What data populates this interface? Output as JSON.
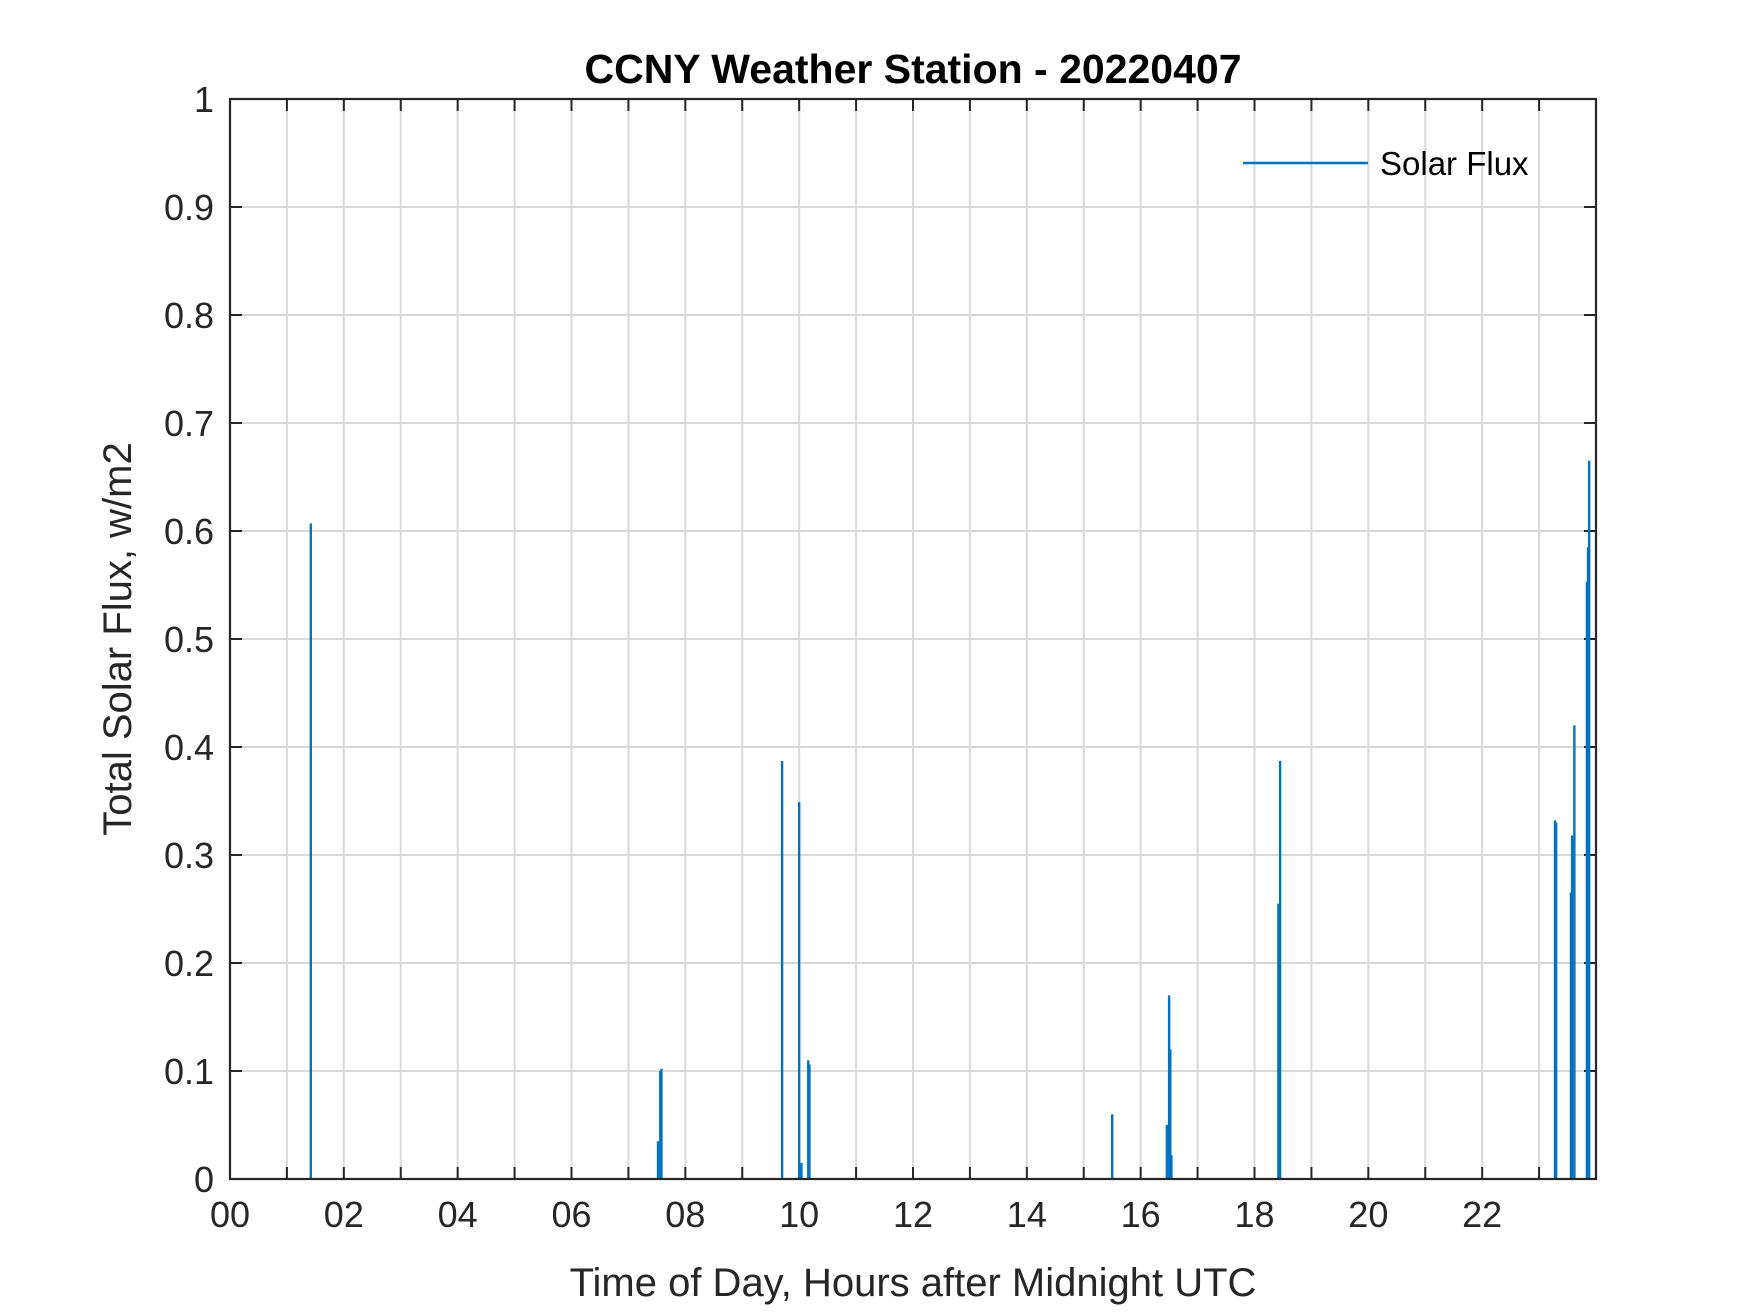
{
  "chart_data": {
    "type": "line",
    "title": "CCNY Weather Station - 20220407",
    "xlabel": "Time of Day, Hours after Midnight UTC",
    "ylabel": "Total Solar Flux, w/m2",
    "xlim": [
      0,
      24
    ],
    "ylim": [
      0,
      1
    ],
    "x_ticks": [
      0,
      2,
      4,
      6,
      8,
      10,
      12,
      14,
      16,
      18,
      20,
      22
    ],
    "x_tick_labels": [
      "00",
      "02",
      "04",
      "06",
      "08",
      "10",
      "12",
      "14",
      "16",
      "18",
      "20",
      "22"
    ],
    "y_ticks": [
      0,
      0.1,
      0.2,
      0.3,
      0.4,
      0.5,
      0.6,
      0.7,
      0.8,
      0.9,
      1
    ],
    "y_tick_labels": [
      "0",
      "0.1",
      "0.2",
      "0.3",
      "0.4",
      "0.5",
      "0.6",
      "0.7",
      "0.8",
      "0.9",
      "1"
    ],
    "grid": true,
    "minor_x_grid_step": 1,
    "legend_position": "top-right",
    "series": [
      {
        "name": "Solar Flux",
        "color": "#0072BD",
        "spikes": [
          {
            "x": 1.42,
            "y": 0.607
          },
          {
            "x": 7.52,
            "y": 0.035
          },
          {
            "x": 7.56,
            "y": 0.1
          },
          {
            "x": 7.58,
            "y": 0.102
          },
          {
            "x": 9.7,
            "y": 0.387
          },
          {
            "x": 10.0,
            "y": 0.349
          },
          {
            "x": 10.04,
            "y": 0.015
          },
          {
            "x": 10.16,
            "y": 0.11
          },
          {
            "x": 10.18,
            "y": 0.106
          },
          {
            "x": 15.5,
            "y": 0.06
          },
          {
            "x": 16.46,
            "y": 0.05
          },
          {
            "x": 16.48,
            "y": 0.04
          },
          {
            "x": 16.5,
            "y": 0.17
          },
          {
            "x": 16.52,
            "y": 0.12
          },
          {
            "x": 16.54,
            "y": 0.022
          },
          {
            "x": 18.42,
            "y": 0.255
          },
          {
            "x": 18.45,
            "y": 0.387
          },
          {
            "x": 23.28,
            "y": 0.332
          },
          {
            "x": 23.3,
            "y": 0.33
          },
          {
            "x": 23.56,
            "y": 0.265
          },
          {
            "x": 23.58,
            "y": 0.318
          },
          {
            "x": 23.62,
            "y": 0.42
          },
          {
            "x": 23.84,
            "y": 0.553
          },
          {
            "x": 23.86,
            "y": 0.585
          },
          {
            "x": 23.88,
            "y": 0.665
          }
        ]
      }
    ]
  }
}
